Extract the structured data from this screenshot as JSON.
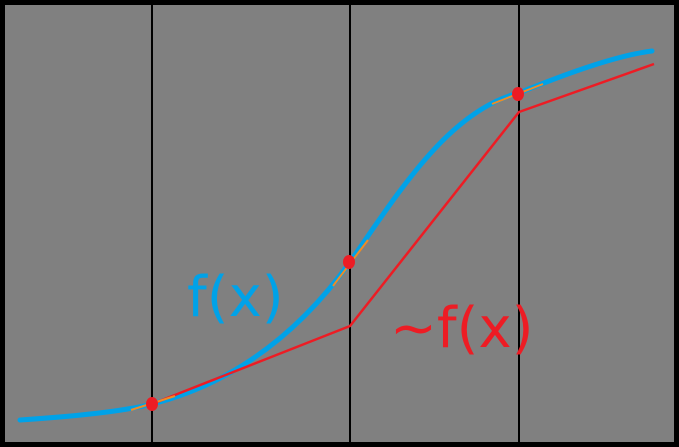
{
  "colors": {
    "background": "#000000",
    "panel": "#808080",
    "divider": "#000000",
    "curve": "#00a2e8",
    "approx": "#ed1c24",
    "tangent": "#f08a24",
    "point": "#ed1c24"
  },
  "labels": {
    "f": "f(x)",
    "approx": "~f(x)"
  }
}
